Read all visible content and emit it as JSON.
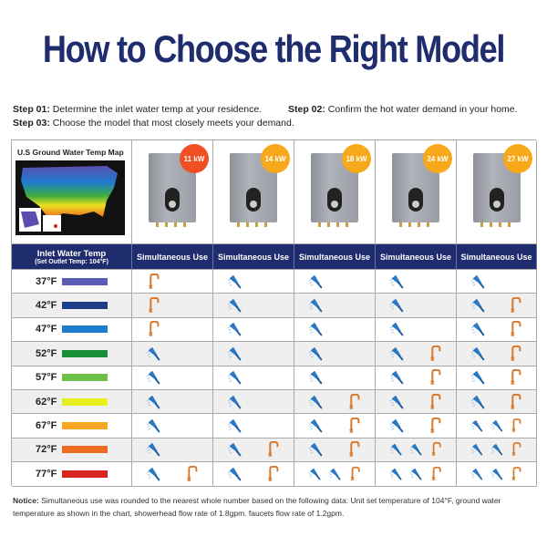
{
  "title": "How to Choose the Right Model",
  "steps": [
    {
      "label": "Step 01:",
      "text": "Determine the inlet water temp at your residence."
    },
    {
      "label": "Step 02:",
      "text": "Confirm the hot water demand in your home."
    },
    {
      "label": "Step 03:",
      "text": "Choose the model that most closely meets your demand."
    }
  ],
  "map_title": "U.S Ground Water Temp Map",
  "header": {
    "first_line1": "Inlet Water Temp",
    "first_line2": "(Set Outlet Temp: 104°F)",
    "column_label": "Simultaneous Use"
  },
  "models": [
    {
      "label": "11 kW",
      "badge_color": "#f04e23"
    },
    {
      "label": "14 kW",
      "badge_color": "#f7a81b"
    },
    {
      "label": "18 kW",
      "badge_color": "#f7a81b"
    },
    {
      "label": "24 kW",
      "badge_color": "#f7a81b"
    },
    {
      "label": "27 kW",
      "badge_color": "#f7a81b"
    }
  ],
  "rows": [
    {
      "temp": "37°F",
      "color": "#5a5db3",
      "use": [
        [
          0,
          1
        ],
        [
          1,
          0
        ],
        [
          1,
          0
        ],
        [
          1,
          0
        ],
        [
          1,
          0
        ]
      ]
    },
    {
      "temp": "42°F",
      "color": "#1d3f8a",
      "use": [
        [
          0,
          1
        ],
        [
          1,
          0
        ],
        [
          1,
          0
        ],
        [
          1,
          0
        ],
        [
          1,
          1
        ]
      ]
    },
    {
      "temp": "47°F",
      "color": "#1e7bd0",
      "use": [
        [
          0,
          1
        ],
        [
          1,
          0
        ],
        [
          1,
          0
        ],
        [
          1,
          0
        ],
        [
          1,
          1
        ]
      ]
    },
    {
      "temp": "52°F",
      "color": "#1a8f3a",
      "use": [
        [
          1,
          0
        ],
        [
          1,
          0
        ],
        [
          1,
          0
        ],
        [
          1,
          1
        ],
        [
          1,
          1
        ]
      ]
    },
    {
      "temp": "57°F",
      "color": "#6cc04a",
      "use": [
        [
          1,
          0
        ],
        [
          1,
          0
        ],
        [
          1,
          0
        ],
        [
          1,
          1
        ],
        [
          1,
          1
        ]
      ]
    },
    {
      "temp": "62°F",
      "color": "#e8ef1e",
      "use": [
        [
          1,
          0
        ],
        [
          1,
          0
        ],
        [
          1,
          1
        ],
        [
          1,
          1
        ],
        [
          1,
          1
        ]
      ]
    },
    {
      "temp": "67°F",
      "color": "#f5a623",
      "use": [
        [
          1,
          0
        ],
        [
          1,
          0
        ],
        [
          1,
          1
        ],
        [
          1,
          1
        ],
        [
          2,
          1
        ]
      ]
    },
    {
      "temp": "72°F",
      "color": "#ee6c22",
      "use": [
        [
          1,
          0
        ],
        [
          1,
          1
        ],
        [
          1,
          1
        ],
        [
          2,
          1
        ],
        [
          2,
          1
        ]
      ]
    },
    {
      "temp": "77°F",
      "color": "#d9231f",
      "use": [
        [
          1,
          1
        ],
        [
          1,
          1
        ],
        [
          2,
          1
        ],
        [
          2,
          1
        ],
        [
          2,
          1
        ]
      ]
    }
  ],
  "icons": {
    "shower": "showerhead-icon",
    "faucet": "faucet-icon"
  },
  "colors": {
    "navy": "#1f2c6e",
    "shower": "#2a78c0",
    "faucet": "#d9782a"
  },
  "notice": {
    "label": "Notice:",
    "text": "Simultaneous use was rounded to the nearest whole number based on the following data: Unit set temperature of 104°F, ground water temperature as shown in the chart, showerhead flow rate of 1.8gpm. faucets flow rate of 1.2gpm."
  }
}
